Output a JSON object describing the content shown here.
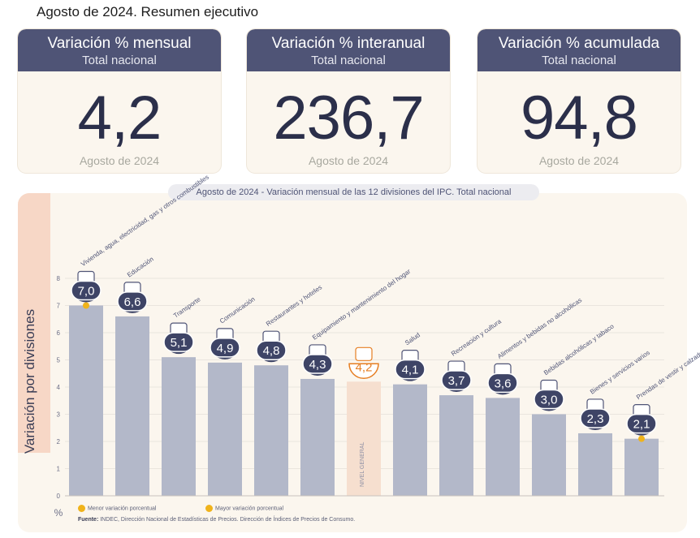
{
  "page_title": "Agosto de 2024. Resumen ejecutivo",
  "cards": [
    {
      "title": "Variación % mensual",
      "subtitle": "Total nacional",
      "value": "4,2",
      "footer": "Agosto de 2024"
    },
    {
      "title": "Variación % interanual",
      "subtitle": "Total nacional",
      "value": "236,7",
      "footer": "Agosto de 2024"
    },
    {
      "title": "Variación % acumulada",
      "subtitle": "Total nacional",
      "value": "94,8",
      "footer": "Agosto de 2024"
    }
  ],
  "chart_data": {
    "type": "bar",
    "title_date": "Agosto de 2024",
    "title": " - Variación mensual de las 12 divisiones del IPC. Total nacional",
    "ylabel": "Variación por divisiones",
    "y_unit": "%",
    "ylim": [
      0,
      8
    ],
    "yticks": [
      "0",
      "1",
      "2",
      "3",
      "4",
      "5",
      "6",
      "7",
      "8"
    ],
    "grid": true,
    "categories": [
      "Vivienda, agua, electricidad, gas y otros combustibles",
      "Educación",
      "Transporte",
      "Comunicación",
      "Restaurantes y hoteles",
      "Equipamiento y mantenimiento del hogar",
      "NIVEL GENERAL",
      "Salud",
      "Recreación y cultura",
      "Alimentos y bebidas no alcohólicas",
      "Bebidas alcohólicas y tabaco",
      "Bienes y servicios varios",
      "Prendas de vestir y calzado"
    ],
    "values": [
      7.0,
      6.6,
      5.1,
      4.9,
      4.8,
      4.3,
      4.2,
      4.1,
      3.7,
      3.6,
      3.0,
      2.3,
      2.1
    ],
    "value_labels": [
      "7,0",
      "6,6",
      "5,1",
      "4,9",
      "4,8",
      "4,3",
      "4,2",
      "4,1",
      "3,7",
      "3,6",
      "3,0",
      "2,3",
      "2,1"
    ],
    "highlight_index": 6,
    "max_marker_index": 0,
    "min_marker_index": 12,
    "colors": {
      "bar": "#b3b8c9",
      "general_bar": "#f6dfcf",
      "badge": "#3e4466",
      "general_text": "#e67e22",
      "marker": "#f0b31b"
    }
  },
  "legend": [
    {
      "label": "Menor variación porcentual"
    },
    {
      "label": "Mayor variación porcentual"
    }
  ],
  "source": {
    "label": "Fuente:",
    "text": " INDEC, Dirección Nacional de Estadísticas de Precios. Dirección de Índices de Precios de Consumo."
  }
}
